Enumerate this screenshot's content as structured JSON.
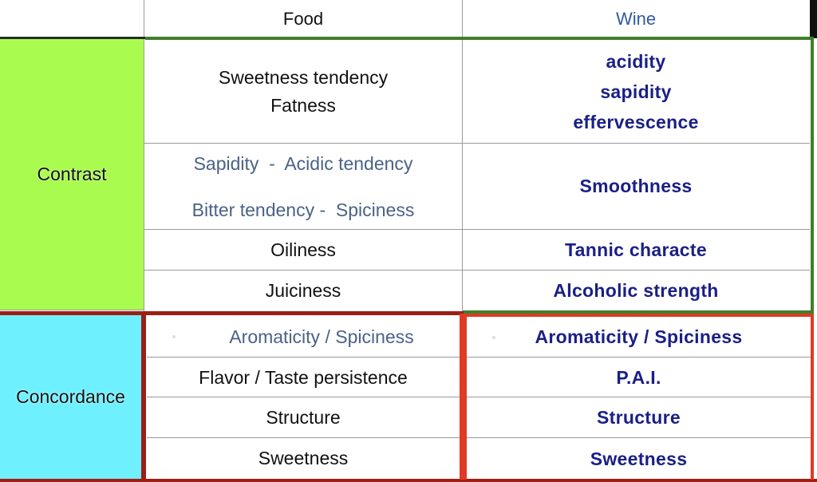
{
  "header": {
    "left": "",
    "food": "Food",
    "wine": "Wine"
  },
  "groups": {
    "contrast": "Contrast",
    "concordance": "Concordance"
  },
  "contrast_rows": [
    {
      "food": [
        "Sweetness tendency",
        "Fatness"
      ],
      "wine": [
        "acidity",
        "sapidity",
        "effervescence"
      ]
    },
    {
      "food": [
        "Sapidity  -  Acidic tendency",
        "Bitter tendency -  Spiciness"
      ],
      "wine": [
        "Smoothness"
      ]
    },
    {
      "food": [
        "Oiliness"
      ],
      "wine": [
        "Tannic characte"
      ]
    },
    {
      "food": [
        "Juiciness"
      ],
      "wine": [
        "Alcoholic strength"
      ]
    }
  ],
  "concordance_rows": [
    {
      "food": "Aromaticity / Spiciness",
      "wine": "Aromaticity / Spiciness"
    },
    {
      "food": "Flavor / Taste persistence",
      "wine": "P.A.I."
    },
    {
      "food": "Structure",
      "wine": "Structure"
    },
    {
      "food": "Sweetness",
      "wine": "Sweetness"
    }
  ],
  "colors": {
    "contrast_fill": "#aafb50",
    "concordance_fill": "#6ff0ff",
    "contrast_border": "#3f7f2a",
    "concordance_border": "#e03a25",
    "dark_red_border": "#9c1f16",
    "wine_text": "#1a1f86",
    "muted_text": "#4a6286"
  }
}
